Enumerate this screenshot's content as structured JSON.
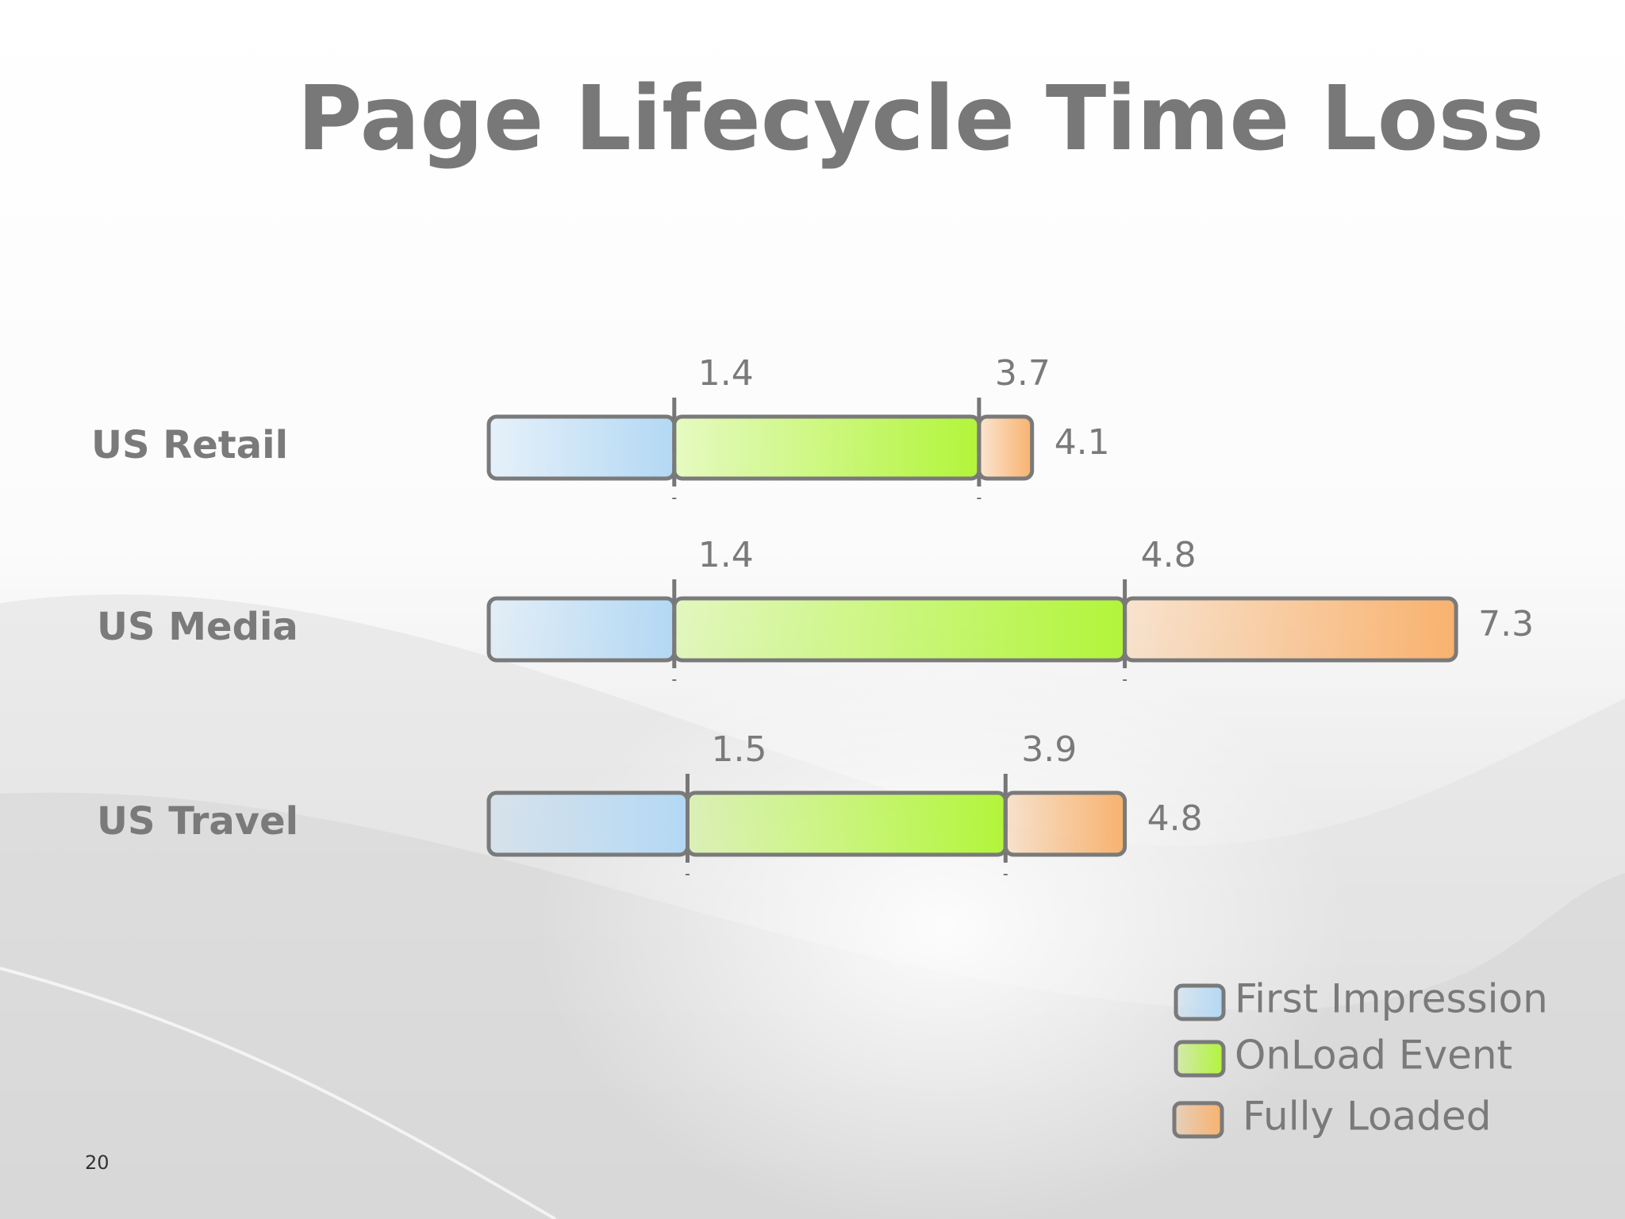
{
  "page_number": "20",
  "chart_data": {
    "type": "timeline",
    "title": "Page Lifecycle Time Loss",
    "categories": [
      "US Retail",
      "US Media",
      "US Travel"
    ],
    "series": [
      {
        "name": "First Impression",
        "color": "#b3d8f4",
        "values": [
          1.4,
          1.4,
          1.5
        ]
      },
      {
        "name": "OnLoad Event",
        "color": "#b2f53a",
        "values": [
          3.7,
          4.8,
          3.9
        ]
      },
      {
        "name": "Fully Loaded",
        "color": "#f8b26e",
        "values": [
          4.1,
          7.3,
          4.8
        ]
      }
    ],
    "legend": "bottom-right"
  }
}
